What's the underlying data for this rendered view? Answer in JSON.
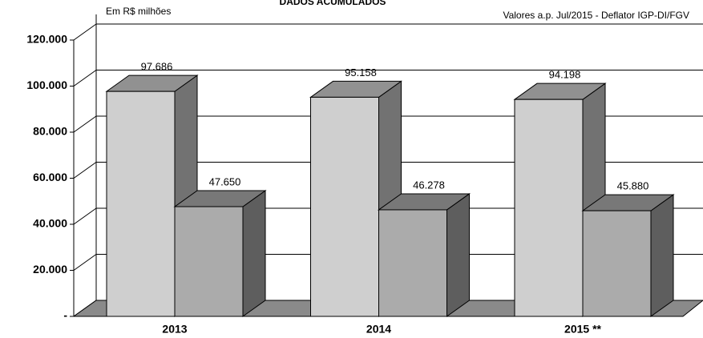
{
  "chart_data": {
    "type": "bar3d",
    "title": "DADOS ACUMULADOS",
    "subtitle_left": "Em R$ milhões",
    "subtitle_right": "Valores a.p. Jul/2015 - Deflator IGP-DI/FGV",
    "categories": [
      "2013",
      "2014",
      "2015 **"
    ],
    "series": [
      {
        "color": "#cfcfcf",
        "values": [
          97686,
          95158,
          94198
        ],
        "value_labels": [
          "97.686",
          "95.158",
          "94.198"
        ]
      },
      {
        "color": "#ababab",
        "values": [
          47650,
          46278,
          45880
        ],
        "value_labels": [
          "47.650",
          "46.278",
          "45.880"
        ]
      }
    ],
    "ylim": [
      0,
      120000
    ],
    "yticks": [
      {
        "value": 0,
        "label": "-"
      },
      {
        "value": 20000,
        "label": "20.000"
      },
      {
        "value": 40000,
        "label": "40.000"
      },
      {
        "value": 60000,
        "label": "60.000"
      },
      {
        "value": 80000,
        "label": "80.000"
      },
      {
        "value": 100000,
        "label": "100.000"
      },
      {
        "value": 120000,
        "label": "120.000"
      }
    ],
    "grid": true
  }
}
